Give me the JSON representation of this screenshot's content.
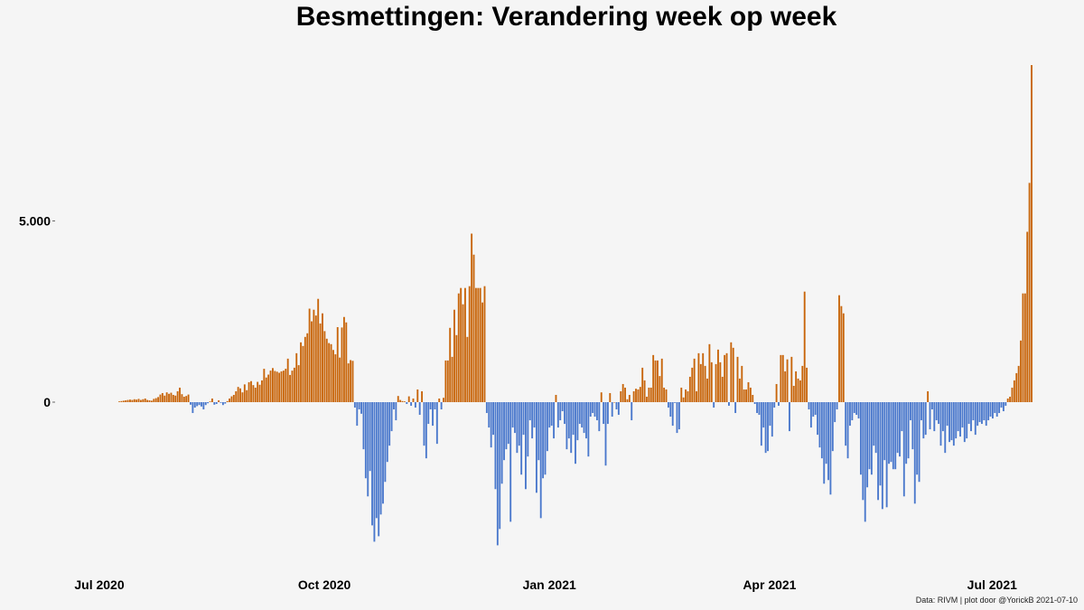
{
  "chart_data": {
    "type": "bar",
    "title": "Besmettingen: Verandering week op week",
    "caption": "Data: RIVM | plot door @YorickB  2021-07-10",
    "xlabel": "",
    "ylabel": "",
    "x_start": "2020-07-01",
    "x_end": "2021-07-09",
    "x_ticks": [
      {
        "date": "2020-07-01",
        "label": "Jul 2020"
      },
      {
        "date": "2020-10-01",
        "label": "Oct 2020"
      },
      {
        "date": "2021-01-01",
        "label": "Jan 2021"
      },
      {
        "date": "2021-04-01",
        "label": "Apr 2021"
      },
      {
        "date": "2021-07-01",
        "label": "Jul 2021"
      }
    ],
    "y_ticks": [
      {
        "value": 0,
        "label": "0"
      },
      {
        "value": 5000,
        "label": "5.000"
      }
    ],
    "ylim": [
      -4100,
      9400
    ],
    "grid": false,
    "colors": {
      "positive": "#c8650a",
      "negative": "#4a78cc",
      "background": "#f5f5f5"
    },
    "values": [
      20,
      30,
      40,
      50,
      60,
      70,
      60,
      80,
      70,
      90,
      60,
      80,
      100,
      60,
      50,
      40,
      90,
      110,
      140,
      210,
      250,
      180,
      270,
      230,
      260,
      200,
      180,
      300,
      400,
      220,
      150,
      170,
      210,
      -70,
      -300,
      -150,
      -110,
      -80,
      -120,
      -200,
      -80,
      -30,
      20,
      100,
      -70,
      -50,
      50,
      -20,
      -80,
      -40,
      30,
      100,
      160,
      200,
      300,
      420,
      380,
      270,
      490,
      330,
      550,
      580,
      470,
      400,
      560,
      480,
      600,
      920,
      680,
      760,
      870,
      940,
      860,
      840,
      810,
      850,
      870,
      920,
      1200,
      750,
      870,
      950,
      1350,
      1020,
      1650,
      1550,
      1800,
      1900,
      2580,
      2230,
      2550,
      2390,
      2850,
      2170,
      2450,
      1960,
      1750,
      1630,
      1600,
      1440,
      1320,
      2070,
      1230,
      2060,
      2350,
      2200,
      1070,
      1160,
      1140,
      -150,
      -650,
      -200,
      -320,
      -1300,
      -2100,
      -2600,
      -1900,
      -3400,
      -3850,
      -3200,
      -3700,
      -3100,
      -2800,
      -2200,
      -1650,
      -1200,
      -800,
      -200,
      -500,
      170,
      60,
      30,
      20,
      -50,
      160,
      -100,
      100,
      -150,
      350,
      -350,
      300,
      -1200,
      -1550,
      -600,
      -200,
      -650,
      -200,
      -1150,
      100,
      -200,
      120,
      1150,
      1150,
      2050,
      1250,
      2550,
      1850,
      3000,
      3150,
      2700,
      3150,
      1800,
      3200,
      4650,
      4070,
      3150,
      3150,
      3150,
      2750,
      3200,
      -300,
      -700,
      -1250,
      -900,
      -2400,
      -3950,
      -3500,
      -2250,
      -1600,
      -1300,
      -1150,
      -3300,
      -700,
      -850,
      -1400,
      -1200,
      -2000,
      -900,
      -2400,
      -1500,
      -500,
      -1000,
      -700,
      -2500,
      -1600,
      -3200,
      -2100,
      -2000,
      -1350,
      -700,
      -650,
      -1000,
      200,
      -700,
      -500,
      -250,
      -600,
      -1300,
      -1000,
      -1400,
      -900,
      -1700,
      -1050,
      -600,
      -700,
      -850,
      -1000,
      -1500,
      -400,
      -300,
      -400,
      -500,
      -800,
      270,
      -600,
      -1750,
      -600,
      250,
      -400,
      0,
      -200,
      -350,
      300,
      500,
      400,
      80,
      200,
      -500,
      300,
      370,
      350,
      420,
      950,
      600,
      150,
      400,
      400,
      1300,
      1150,
      1150,
      720,
      1200,
      400,
      350,
      -150,
      -400,
      -650,
      -20,
      -850,
      -750,
      400,
      130,
      350,
      300,
      700,
      950,
      1200,
      300,
      1350,
      1050,
      1350,
      1000,
      650,
      1600,
      1100,
      -150,
      1050,
      1450,
      1100,
      700,
      1300,
      1350,
      -100,
      1650,
      1500,
      -300,
      1250,
      650,
      1000,
      350,
      350,
      550,
      400,
      200,
      -50,
      -300,
      -350,
      -1200,
      -700,
      -1400,
      -1350,
      -650,
      -950,
      -150,
      500,
      -100,
      1300,
      1300,
      850,
      1180,
      -800,
      1250,
      450,
      850,
      650,
      600,
      1000,
      3050,
      950,
      -200,
      -700,
      -400,
      -350,
      -900,
      -1250,
      -1550,
      -2250,
      -1700,
      -2150,
      -2550,
      -1350,
      -550,
      -200,
      2950,
      2650,
      2450,
      -1200,
      -1550,
      -650,
      -500,
      -300,
      -350,
      -450,
      -2000,
      -2700,
      -3300,
      -2350,
      -1850,
      -2000,
      -1200,
      -1400,
      -2700,
      -2300,
      -2950,
      -1600,
      -2900,
      -1700,
      -1650,
      -1850,
      -1850,
      -1400,
      -1500,
      -800,
      -2600,
      -1700,
      -1550,
      -500,
      -1300,
      -2800,
      -2000,
      -2200,
      -500,
      -1000,
      -900,
      300,
      -750,
      -200,
      -800,
      -500,
      -600,
      -1200,
      -800,
      -1400,
      -650,
      -1100,
      -1050,
      -1200,
      -1000,
      -800,
      -950,
      -700,
      -1100,
      -1000,
      -600,
      -800,
      -500,
      -900,
      -650,
      -550,
      -600,
      -500,
      -650,
      -500,
      -400,
      -450,
      -300,
      -400,
      -300,
      -150,
      -250,
      -100,
      100,
      150,
      400,
      600,
      800,
      1000,
      1700,
      3000,
      3000,
      4700,
      6050,
      9300
    ]
  }
}
